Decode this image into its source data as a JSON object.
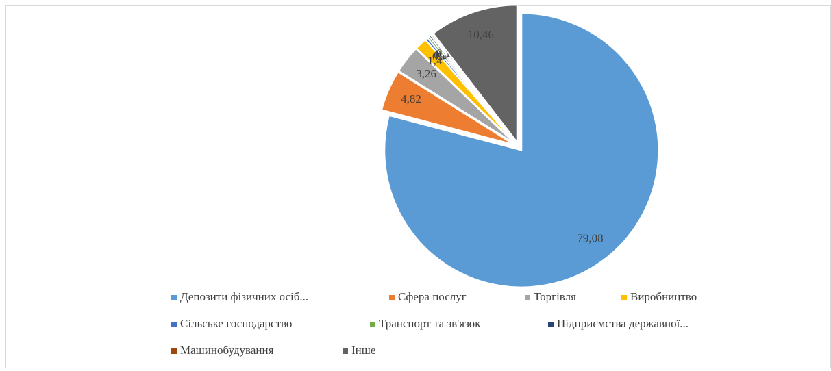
{
  "chart_data": {
    "type": "pie",
    "categories": [
      "Депозити фізичних осіб...",
      "Сфера послуг",
      "Торгівля",
      "Виробництво",
      "Сільське господарство",
      "Транспорт та зв'язок",
      "Підприємства державної...",
      "Машинобудування",
      "Інше"
    ],
    "values": [
      79.08,
      4.82,
      3.26,
      1.43,
      0.3,
      0.25,
      0.22,
      0.18,
      10.46
    ],
    "value_labels": [
      "79,08",
      "4,82",
      "3,26",
      "1,43",
      "0,30",
      "0,25",
      "0,22",
      "0,18",
      "10,46"
    ],
    "colors": [
      "#5b9bd5",
      "#ed7d31",
      "#a5a5a5",
      "#ffc000",
      "#4472c4",
      "#70ad47",
      "#264478",
      "#9e480e",
      "#636363"
    ],
    "legend": "bottom"
  }
}
